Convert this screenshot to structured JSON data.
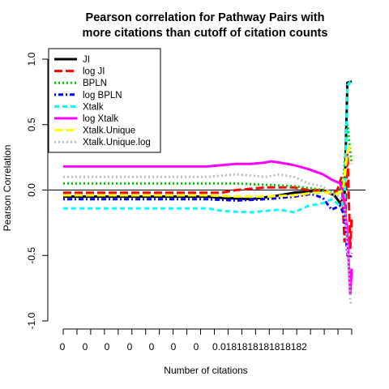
{
  "chart_data": {
    "type": "line",
    "title_lines": [
      "Pearson correlation for Pathway Pairs with",
      "more citations than cutoff of citation counts"
    ],
    "xlabel": "Number of citations",
    "ylabel": "Pearson Correlation",
    "ylim": [
      -1.0,
      1.0
    ],
    "yticks": [
      {
        "value": 1.0,
        "label": "1.0"
      },
      {
        "value": 0.5,
        "label": "0.5"
      },
      {
        "value": 0.0,
        "label": "0.0"
      },
      {
        "value": -0.5,
        "label": "-0.5"
      },
      {
        "value": -1.0,
        "label": "-1.0"
      }
    ],
    "x_tick_count": 22,
    "x_tick_labels": [
      "0",
      "0",
      "0",
      "0",
      "0",
      "0",
      "0",
      "0.0181818181818182"
    ],
    "legend_position": "top-left",
    "reference_line": 0,
    "series": [
      {
        "name": "JI",
        "color": "#000000",
        "dash": "solid",
        "points": [
          [
            0,
            -0.05
          ],
          [
            0.5,
            -0.05
          ],
          [
            0.55,
            -0.06
          ],
          [
            0.65,
            -0.07
          ],
          [
            0.75,
            -0.04
          ],
          [
            0.8,
            -0.02
          ],
          [
            0.85,
            -0.01
          ],
          [
            0.88,
            -0.01
          ],
          [
            0.9,
            0.0
          ],
          [
            0.92,
            -0.02
          ],
          [
            0.94,
            -0.04
          ],
          [
            0.96,
            -0.1
          ],
          [
            0.975,
            -0.05
          ],
          [
            0.985,
            0.82
          ],
          [
            1,
            0.83
          ]
        ]
      },
      {
        "name": "log JI",
        "color": "#ff0000",
        "dash": "longdash",
        "points": [
          [
            0,
            -0.02
          ],
          [
            0.55,
            -0.02
          ],
          [
            0.6,
            0.0
          ],
          [
            0.7,
            0.02
          ],
          [
            0.8,
            0.02
          ],
          [
            0.85,
            0.0
          ],
          [
            0.9,
            0.0
          ],
          [
            0.93,
            -0.03
          ],
          [
            0.95,
            0.0
          ],
          [
            0.965,
            0.1
          ],
          [
            0.975,
            -0.4
          ],
          [
            0.985,
            0.3
          ],
          [
            0.995,
            -0.45
          ],
          [
            1,
            -0.2
          ]
        ]
      },
      {
        "name": "BPLN",
        "color": "#00cc00",
        "dash": "dotted",
        "points": [
          [
            0,
            0.05
          ],
          [
            0.6,
            0.05
          ],
          [
            0.7,
            0.04
          ],
          [
            0.8,
            0.03
          ],
          [
            0.87,
            0.01
          ],
          [
            0.92,
            -0.01
          ],
          [
            0.95,
            -0.03
          ],
          [
            0.97,
            0.05
          ],
          [
            0.985,
            0.5
          ],
          [
            1,
            0.2
          ]
        ]
      },
      {
        "name": "log BPLN",
        "color": "#0000ff",
        "dash": "dotdash",
        "points": [
          [
            0,
            -0.07
          ],
          [
            0.5,
            -0.07
          ],
          [
            0.6,
            -0.08
          ],
          [
            0.7,
            -0.07
          ],
          [
            0.8,
            -0.05
          ],
          [
            0.86,
            -0.03
          ],
          [
            0.9,
            -0.06
          ],
          [
            0.93,
            -0.15
          ],
          [
            0.96,
            -0.12
          ],
          [
            0.975,
            -0.2
          ],
          [
            0.985,
            -0.5
          ],
          [
            0.995,
            -0.52
          ],
          [
            1,
            -0.48
          ]
        ]
      },
      {
        "name": "Xtalk",
        "color": "#00ffff",
        "dash": "dashed",
        "points": [
          [
            0,
            -0.14
          ],
          [
            0.5,
            -0.14
          ],
          [
            0.55,
            -0.16
          ],
          [
            0.65,
            -0.17
          ],
          [
            0.75,
            -0.15
          ],
          [
            0.8,
            -0.17
          ],
          [
            0.85,
            -0.12
          ],
          [
            0.9,
            -0.1
          ],
          [
            0.93,
            -0.07
          ],
          [
            0.96,
            -0.12
          ],
          [
            0.975,
            -0.1
          ],
          [
            0.985,
            0.8
          ],
          [
            1,
            0.84
          ]
        ]
      },
      {
        "name": "log Xtalk",
        "color": "#ff00ff",
        "dash": "solid",
        "points": [
          [
            0,
            0.18
          ],
          [
            0.5,
            0.18
          ],
          [
            0.55,
            0.19
          ],
          [
            0.6,
            0.2
          ],
          [
            0.65,
            0.2
          ],
          [
            0.7,
            0.21
          ],
          [
            0.72,
            0.22
          ],
          [
            0.75,
            0.21
          ],
          [
            0.8,
            0.19
          ],
          [
            0.85,
            0.16
          ],
          [
            0.9,
            0.12
          ],
          [
            0.93,
            0.08
          ],
          [
            0.96,
            0.05
          ],
          [
            0.975,
            -0.1
          ],
          [
            0.985,
            -0.35
          ],
          [
            0.995,
            -0.8
          ],
          [
            1,
            -0.6
          ]
        ]
      },
      {
        "name": "Xtalk.Unique",
        "color": "#ffff00",
        "dash": "longdash",
        "points": [
          [
            0,
            -0.04
          ],
          [
            0.5,
            -0.04
          ],
          [
            0.6,
            -0.05
          ],
          [
            0.7,
            -0.05
          ],
          [
            0.8,
            -0.04
          ],
          [
            0.87,
            -0.02
          ],
          [
            0.92,
            -0.02
          ],
          [
            0.95,
            -0.03
          ],
          [
            0.97,
            0.0
          ],
          [
            0.985,
            0.3
          ],
          [
            1,
            0.35
          ]
        ]
      },
      {
        "name": "Xtalk.Unique.log",
        "color": "#bebebe",
        "dash": "dotted",
        "points": [
          [
            0,
            0.1
          ],
          [
            0.5,
            0.1
          ],
          [
            0.55,
            0.11
          ],
          [
            0.6,
            0.12
          ],
          [
            0.65,
            0.11
          ],
          [
            0.7,
            0.1
          ],
          [
            0.75,
            0.12
          ],
          [
            0.8,
            0.1
          ],
          [
            0.85,
            0.05
          ],
          [
            0.9,
            0.03
          ],
          [
            0.93,
            -0.03
          ],
          [
            0.96,
            -0.05
          ],
          [
            0.975,
            -0.15
          ],
          [
            0.985,
            -0.45
          ],
          [
            0.995,
            -0.85
          ],
          [
            1,
            -0.88
          ]
        ]
      }
    ]
  }
}
